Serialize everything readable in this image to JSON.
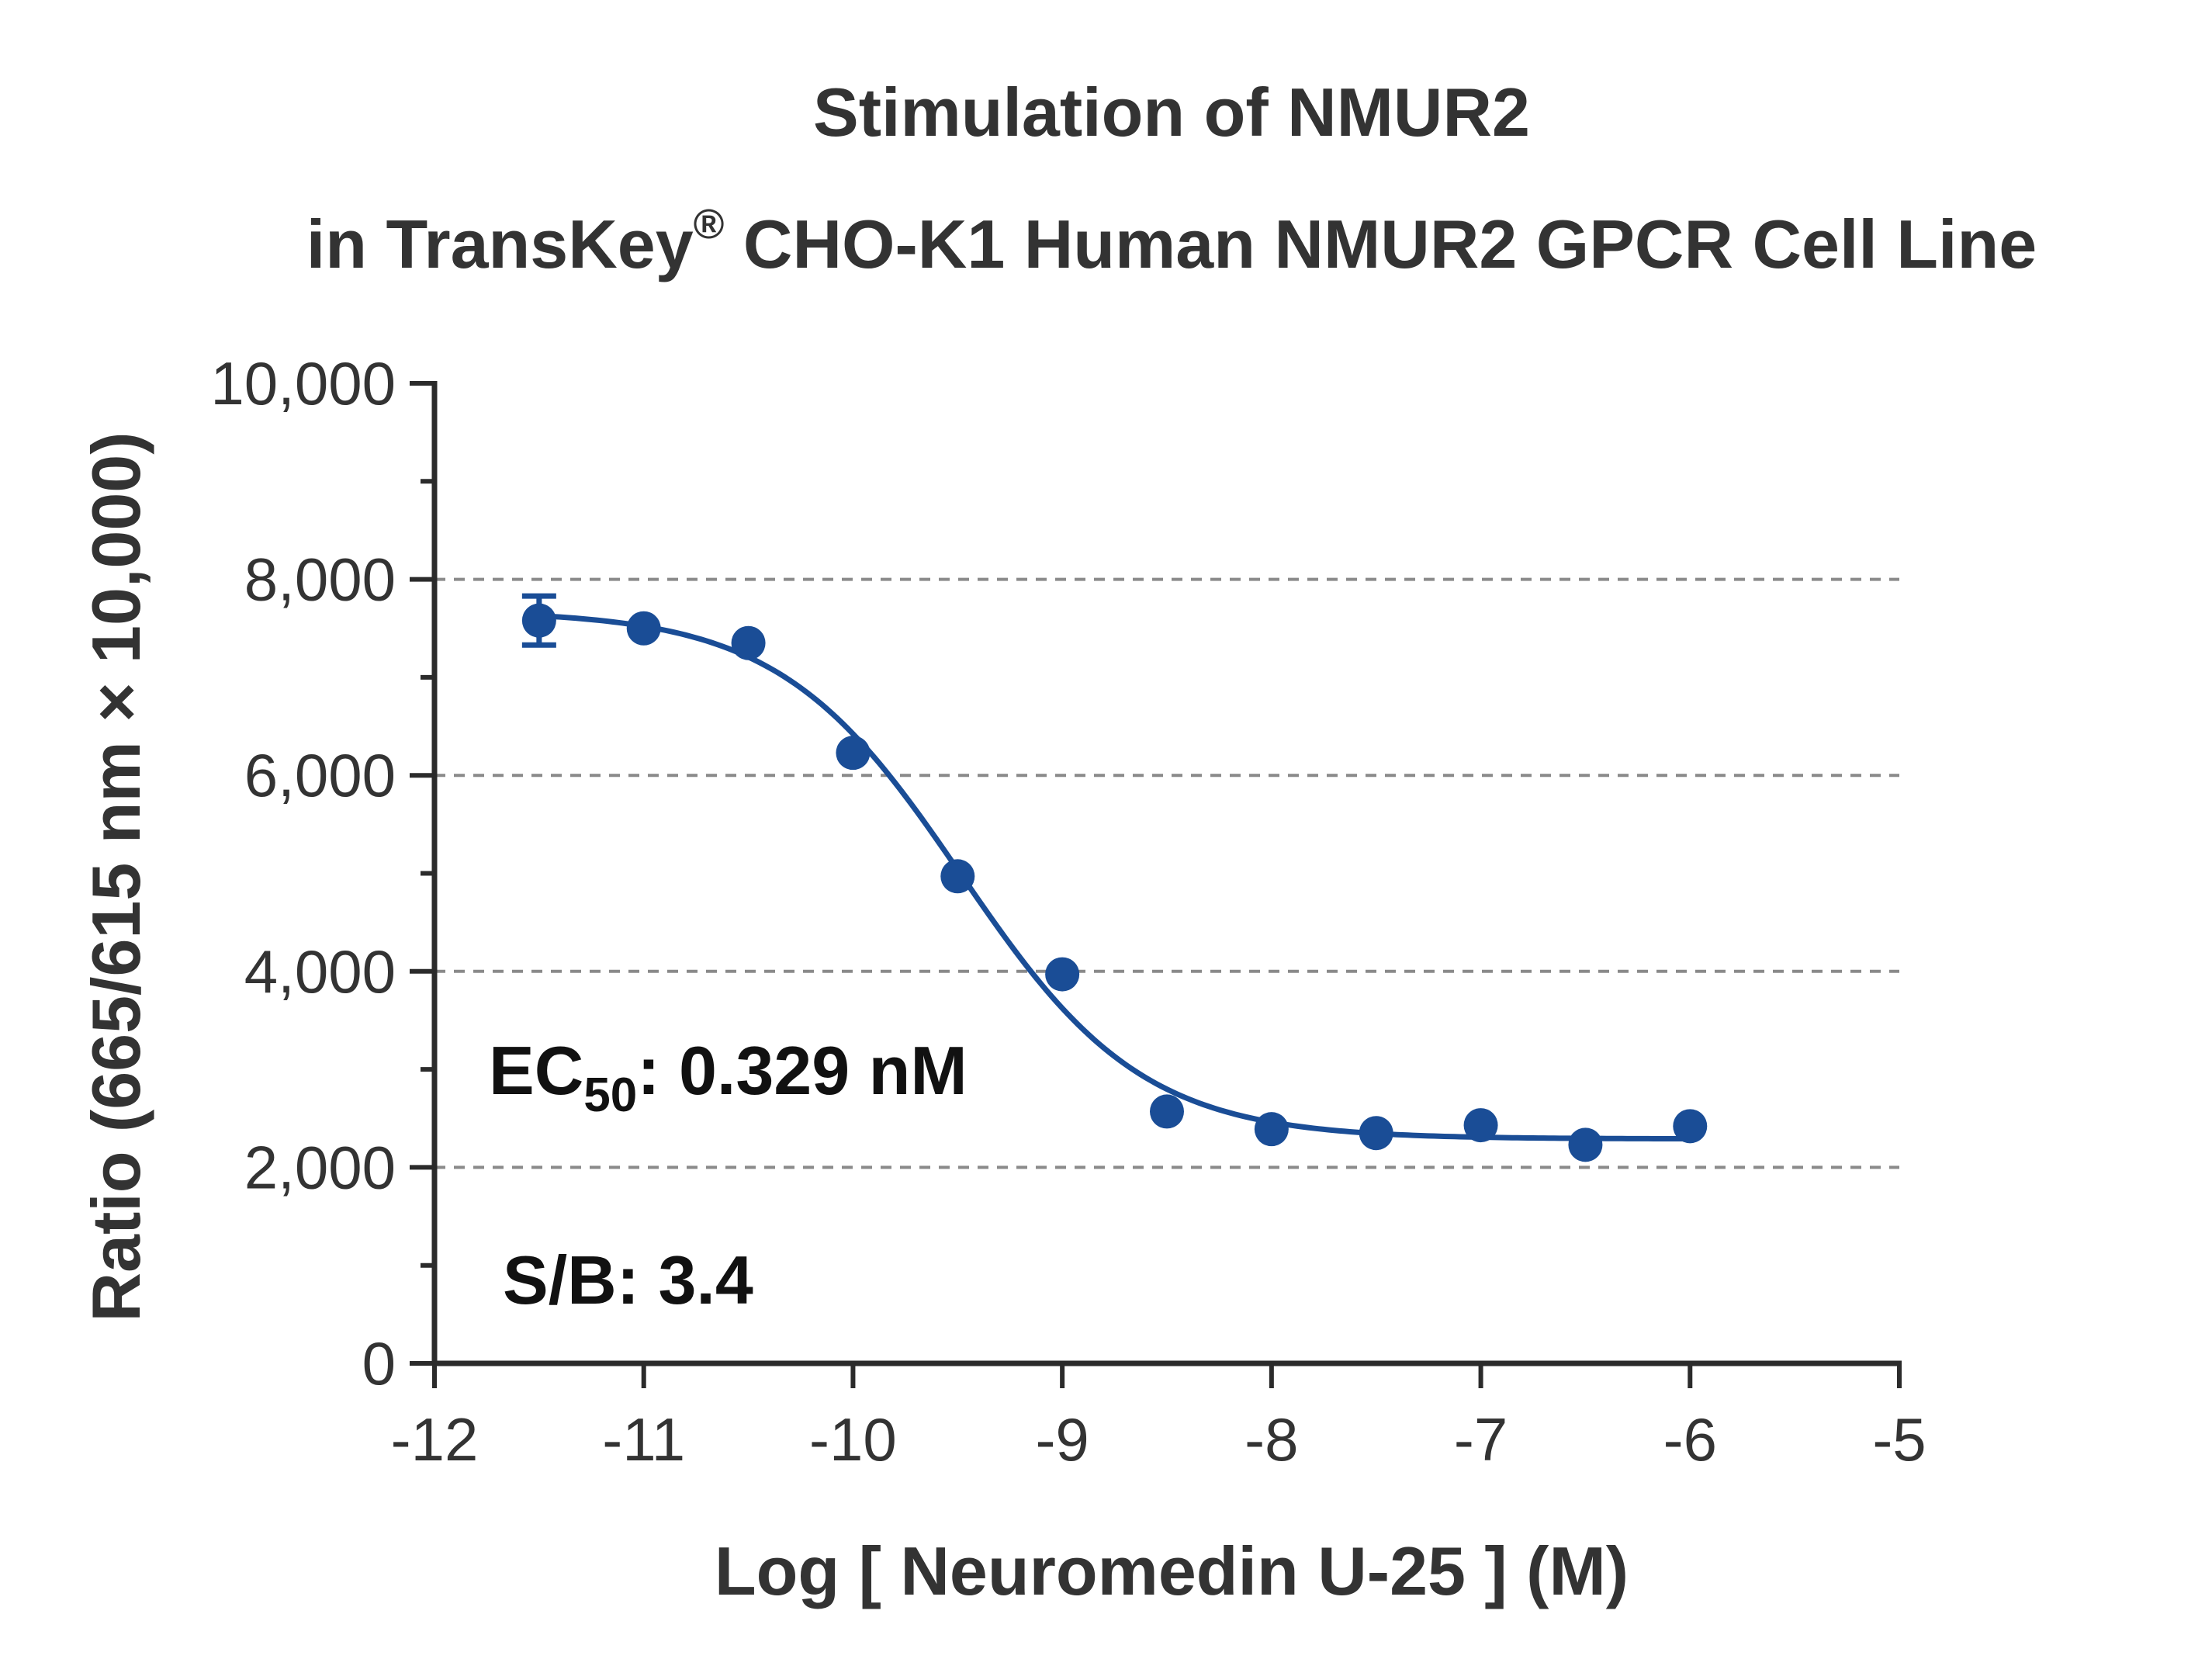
{
  "chart_data": {
    "type": "scatter",
    "title_line1": "Stimulation of  NMUR2",
    "title_line2_prefix": "in TransKey",
    "title_line2_mark": "®",
    "title_line2_suffix": " CHO-K1 Human NMUR2 GPCR Cell Line",
    "xlabel": "Log [ Neuromedin U-25 ]  (M)",
    "ylabel": "Ratio (665/615 nm × 10,000)",
    "xlim": [
      -12,
      -5
    ],
    "ylim": [
      0,
      10000
    ],
    "x_ticks": [
      -12,
      -11,
      -10,
      -9,
      -8,
      -7,
      -6,
      -5
    ],
    "x_tick_labels": [
      "-12",
      "-11",
      "-10",
      "-9",
      "-8",
      "-7",
      "-6",
      "-5"
    ],
    "y_ticks": [
      0,
      2000,
      4000,
      6000,
      8000,
      10000
    ],
    "y_tick_labels": [
      "0",
      "2,000",
      "4,000",
      "6,000",
      "8,000",
      "10,000"
    ],
    "y_minor_step": 1000,
    "grid": {
      "horizontal_dashed_at": [
        2000,
        4000,
        6000,
        8000
      ]
    },
    "series": [
      {
        "x": [
          -11.5,
          -11,
          -10.5,
          -10,
          -9.5,
          -9,
          -8.5,
          -8,
          -7.5,
          -7,
          -6.5,
          -6
        ],
        "y": [
          7580,
          7500,
          7350,
          6230,
          4970,
          3970,
          2570,
          2390,
          2350,
          2430,
          2230,
          2420
        ],
        "error": [
          250,
          0,
          0,
          0,
          0,
          0,
          0,
          0,
          0,
          0,
          0,
          0
        ],
        "color": "#1a4d96"
      }
    ],
    "fit": {
      "model": "four-parameter logistic",
      "top": 7680,
      "bottom": 2290,
      "logEC50": -9.483,
      "hill": -1.0,
      "x_range": [
        -11.5,
        -6
      ],
      "color": "#1a4d96"
    },
    "annotations": {
      "ec50_prefix": "EC",
      "ec50_sub": "50",
      "ec50_value": ": 0.329 nM",
      "sb": "S/B: 3.4"
    }
  }
}
